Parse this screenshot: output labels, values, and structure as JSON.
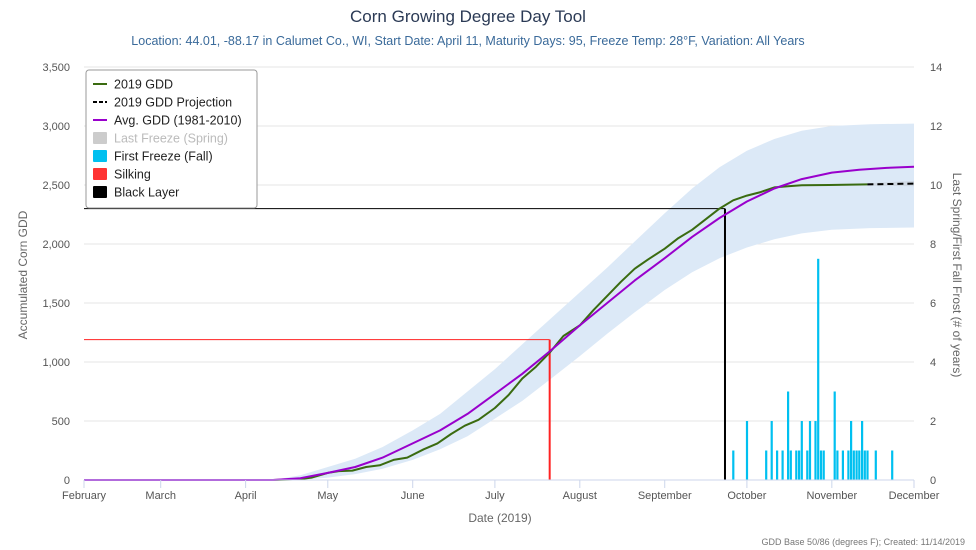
{
  "title": "Corn Growing Degree Day Tool",
  "subtitle": "Location: 44.01, -88.17 in Calumet Co., WI, Start Date: April 11, Maturity Days: 95, Freeze Temp: 28°F, Variation: All Years",
  "credits": "GDD Base 50/86 (degrees F); Created: 11/14/2019",
  "colors": {
    "gdd2019": "#3a6b10",
    "projection": "#000000",
    "avg": "#9900cc",
    "range_band": "#dce9f7",
    "proj_band": "#cfd8e3",
    "first_freeze": "#00c0f0",
    "last_freeze": "#c8c8c8",
    "silking": "#ff2222",
    "black_layer": "#000000"
  },
  "chart_data": {
    "type": "line",
    "xlabel": "Date (2019)",
    "ylabel": "Accumulated Corn GDD",
    "y2label": "Last Spring/First Fall Frost (# of years)",
    "x_range": [
      "2019-02-01",
      "2019-12-01"
    ],
    "ylim": [
      0,
      3500
    ],
    "y2lim": [
      0,
      14
    ],
    "y_ticks": [
      "0",
      "500",
      "1,000",
      "1,500",
      "2,000",
      "2,500",
      "3,000",
      "3,500"
    ],
    "y2_ticks": [
      "0",
      "2",
      "4",
      "6",
      "8",
      "10",
      "12",
      "14"
    ],
    "x_ticks": [
      {
        "date": "2019-02-01",
        "label": "February"
      },
      {
        "date": "2019-03-01",
        "label": "March"
      },
      {
        "date": "2019-04-01",
        "label": "April"
      },
      {
        "date": "2019-05-01",
        "label": "May"
      },
      {
        "date": "2019-06-01",
        "label": "June"
      },
      {
        "date": "2019-07-01",
        "label": "July"
      },
      {
        "date": "2019-08-01",
        "label": "August"
      },
      {
        "date": "2019-09-01",
        "label": "September"
      },
      {
        "date": "2019-10-01",
        "label": "October"
      },
      {
        "date": "2019-11-01",
        "label": "November"
      },
      {
        "date": "2019-12-01",
        "label": "December"
      }
    ],
    "grid": true,
    "legend_position": "top-left",
    "legend": [
      {
        "label": "2019 GDD",
        "symbol": "line",
        "color": "#3a6b10",
        "dim": false
      },
      {
        "label": "2019 GDD Projection",
        "symbol": "dashed",
        "color": "#000000",
        "dim": false
      },
      {
        "label": "Avg. GDD (1981-2010)",
        "symbol": "line",
        "color": "#9900cc",
        "dim": false
      },
      {
        "label": "Last Freeze (Spring)",
        "symbol": "box",
        "color": "#cccccc",
        "dim": true
      },
      {
        "label": "First Freeze (Fall)",
        "symbol": "box",
        "color": "#00c0f0",
        "dim": false
      },
      {
        "label": "Silking",
        "symbol": "box",
        "color": "#ff3333",
        "dim": false
      },
      {
        "label": "Black Layer",
        "symbol": "box",
        "color": "#000000",
        "dim": false
      }
    ],
    "series": [
      {
        "name": "2019 GDD",
        "points": [
          [
            "2019-02-01",
            0
          ],
          [
            "2019-04-11",
            0
          ],
          [
            "2019-04-20",
            5
          ],
          [
            "2019-04-25",
            20
          ],
          [
            "2019-04-28",
            40
          ],
          [
            "2019-05-01",
            60
          ],
          [
            "2019-05-05",
            75
          ],
          [
            "2019-05-10",
            80
          ],
          [
            "2019-05-15",
            110
          ],
          [
            "2019-05-20",
            125
          ],
          [
            "2019-05-25",
            170
          ],
          [
            "2019-05-30",
            190
          ],
          [
            "2019-06-05",
            260
          ],
          [
            "2019-06-10",
            310
          ],
          [
            "2019-06-15",
            390
          ],
          [
            "2019-06-20",
            460
          ],
          [
            "2019-06-25",
            510
          ],
          [
            "2019-07-01",
            610
          ],
          [
            "2019-07-06",
            720
          ],
          [
            "2019-07-11",
            860
          ],
          [
            "2019-07-16",
            960
          ],
          [
            "2019-07-21",
            1080
          ],
          [
            "2019-07-26",
            1220
          ],
          [
            "2019-08-01",
            1310
          ],
          [
            "2019-08-06",
            1440
          ],
          [
            "2019-08-11",
            1560
          ],
          [
            "2019-08-16",
            1680
          ],
          [
            "2019-08-21",
            1790
          ],
          [
            "2019-08-26",
            1870
          ],
          [
            "2019-09-01",
            1960
          ],
          [
            "2019-09-06",
            2050
          ],
          [
            "2019-09-11",
            2120
          ],
          [
            "2019-09-16",
            2210
          ],
          [
            "2019-09-21",
            2300
          ],
          [
            "2019-09-26",
            2370
          ],
          [
            "2019-10-01",
            2410
          ],
          [
            "2019-10-06",
            2440
          ],
          [
            "2019-10-11",
            2480
          ],
          [
            "2019-10-16",
            2490
          ],
          [
            "2019-10-21",
            2498
          ],
          [
            "2019-10-31",
            2500
          ],
          [
            "2019-11-14",
            2505
          ]
        ]
      },
      {
        "name": "2019 GDD Projection",
        "points": [
          [
            "2019-11-14",
            2505
          ],
          [
            "2019-11-20",
            2508
          ],
          [
            "2019-12-01",
            2512
          ]
        ]
      },
      {
        "name": "Avg. GDD (1981-2010)",
        "points": [
          [
            "2019-02-01",
            0
          ],
          [
            "2019-04-11",
            0
          ],
          [
            "2019-04-21",
            15
          ],
          [
            "2019-05-01",
            60
          ],
          [
            "2019-05-11",
            110
          ],
          [
            "2019-05-21",
            190
          ],
          [
            "2019-06-01",
            310
          ],
          [
            "2019-06-11",
            420
          ],
          [
            "2019-06-21",
            560
          ],
          [
            "2019-07-01",
            730
          ],
          [
            "2019-07-11",
            900
          ],
          [
            "2019-07-21",
            1090
          ],
          [
            "2019-08-01",
            1310
          ],
          [
            "2019-08-11",
            1500
          ],
          [
            "2019-08-21",
            1690
          ],
          [
            "2019-09-01",
            1880
          ],
          [
            "2019-09-11",
            2060
          ],
          [
            "2019-09-21",
            2220
          ],
          [
            "2019-10-01",
            2360
          ],
          [
            "2019-10-11",
            2470
          ],
          [
            "2019-10-21",
            2550
          ],
          [
            "2019-11-01",
            2605
          ],
          [
            "2019-11-11",
            2630
          ],
          [
            "2019-11-21",
            2645
          ],
          [
            "2019-12-01",
            2655
          ]
        ]
      }
    ],
    "range_band": [
      [
        "2019-04-11",
        0,
        0
      ],
      [
        "2019-04-21",
        0,
        40
      ],
      [
        "2019-05-01",
        20,
        110
      ],
      [
        "2019-05-11",
        50,
        180
      ],
      [
        "2019-05-21",
        95,
        280
      ],
      [
        "2019-06-01",
        170,
        420
      ],
      [
        "2019-06-11",
        260,
        560
      ],
      [
        "2019-06-21",
        370,
        750
      ],
      [
        "2019-07-01",
        520,
        940
      ],
      [
        "2019-07-11",
        670,
        1150
      ],
      [
        "2019-07-21",
        850,
        1360
      ],
      [
        "2019-08-01",
        1050,
        1590
      ],
      [
        "2019-08-11",
        1240,
        1800
      ],
      [
        "2019-08-21",
        1420,
        2020
      ],
      [
        "2019-09-01",
        1610,
        2260
      ],
      [
        "2019-09-11",
        1760,
        2470
      ],
      [
        "2019-09-21",
        1880,
        2650
      ],
      [
        "2019-10-01",
        1970,
        2790
      ],
      [
        "2019-10-11",
        2040,
        2890
      ],
      [
        "2019-10-21",
        2090,
        2960
      ],
      [
        "2019-11-01",
        2120,
        3000
      ],
      [
        "2019-11-15",
        2135,
        3015
      ],
      [
        "2019-12-01",
        2140,
        3020
      ]
    ],
    "projection_band": [
      [
        "2019-11-14",
        2495,
        2515
      ],
      [
        "2019-12-01",
        2490,
        2535
      ]
    ],
    "silking": {
      "date": "2019-07-21",
      "gdd": 1190
    },
    "black_layer": {
      "date": "2019-09-23",
      "gdd": 2300
    },
    "first_freeze_fall": [
      [
        "2019-09-26",
        1
      ],
      [
        "2019-10-01",
        2
      ],
      [
        "2019-10-08",
        1
      ],
      [
        "2019-10-10",
        2
      ],
      [
        "2019-10-12",
        1
      ],
      [
        "2019-10-14",
        1
      ],
      [
        "2019-10-16",
        3
      ],
      [
        "2019-10-17",
        1
      ],
      [
        "2019-10-19",
        1
      ],
      [
        "2019-10-20",
        1
      ],
      [
        "2019-10-21",
        2
      ],
      [
        "2019-10-23",
        1
      ],
      [
        "2019-10-24",
        2
      ],
      [
        "2019-10-26",
        2
      ],
      [
        "2019-10-27",
        7.5
      ],
      [
        "2019-10-28",
        1
      ],
      [
        "2019-10-29",
        1
      ],
      [
        "2019-11-02",
        3
      ],
      [
        "2019-11-03",
        1
      ],
      [
        "2019-11-05",
        1
      ],
      [
        "2019-11-07",
        1
      ],
      [
        "2019-11-08",
        2
      ],
      [
        "2019-11-09",
        1
      ],
      [
        "2019-11-10",
        1
      ],
      [
        "2019-11-11",
        1
      ],
      [
        "2019-11-12",
        2
      ],
      [
        "2019-11-13",
        1
      ],
      [
        "2019-11-14",
        1
      ],
      [
        "2019-11-17",
        1
      ],
      [
        "2019-11-23",
        1
      ]
    ]
  }
}
